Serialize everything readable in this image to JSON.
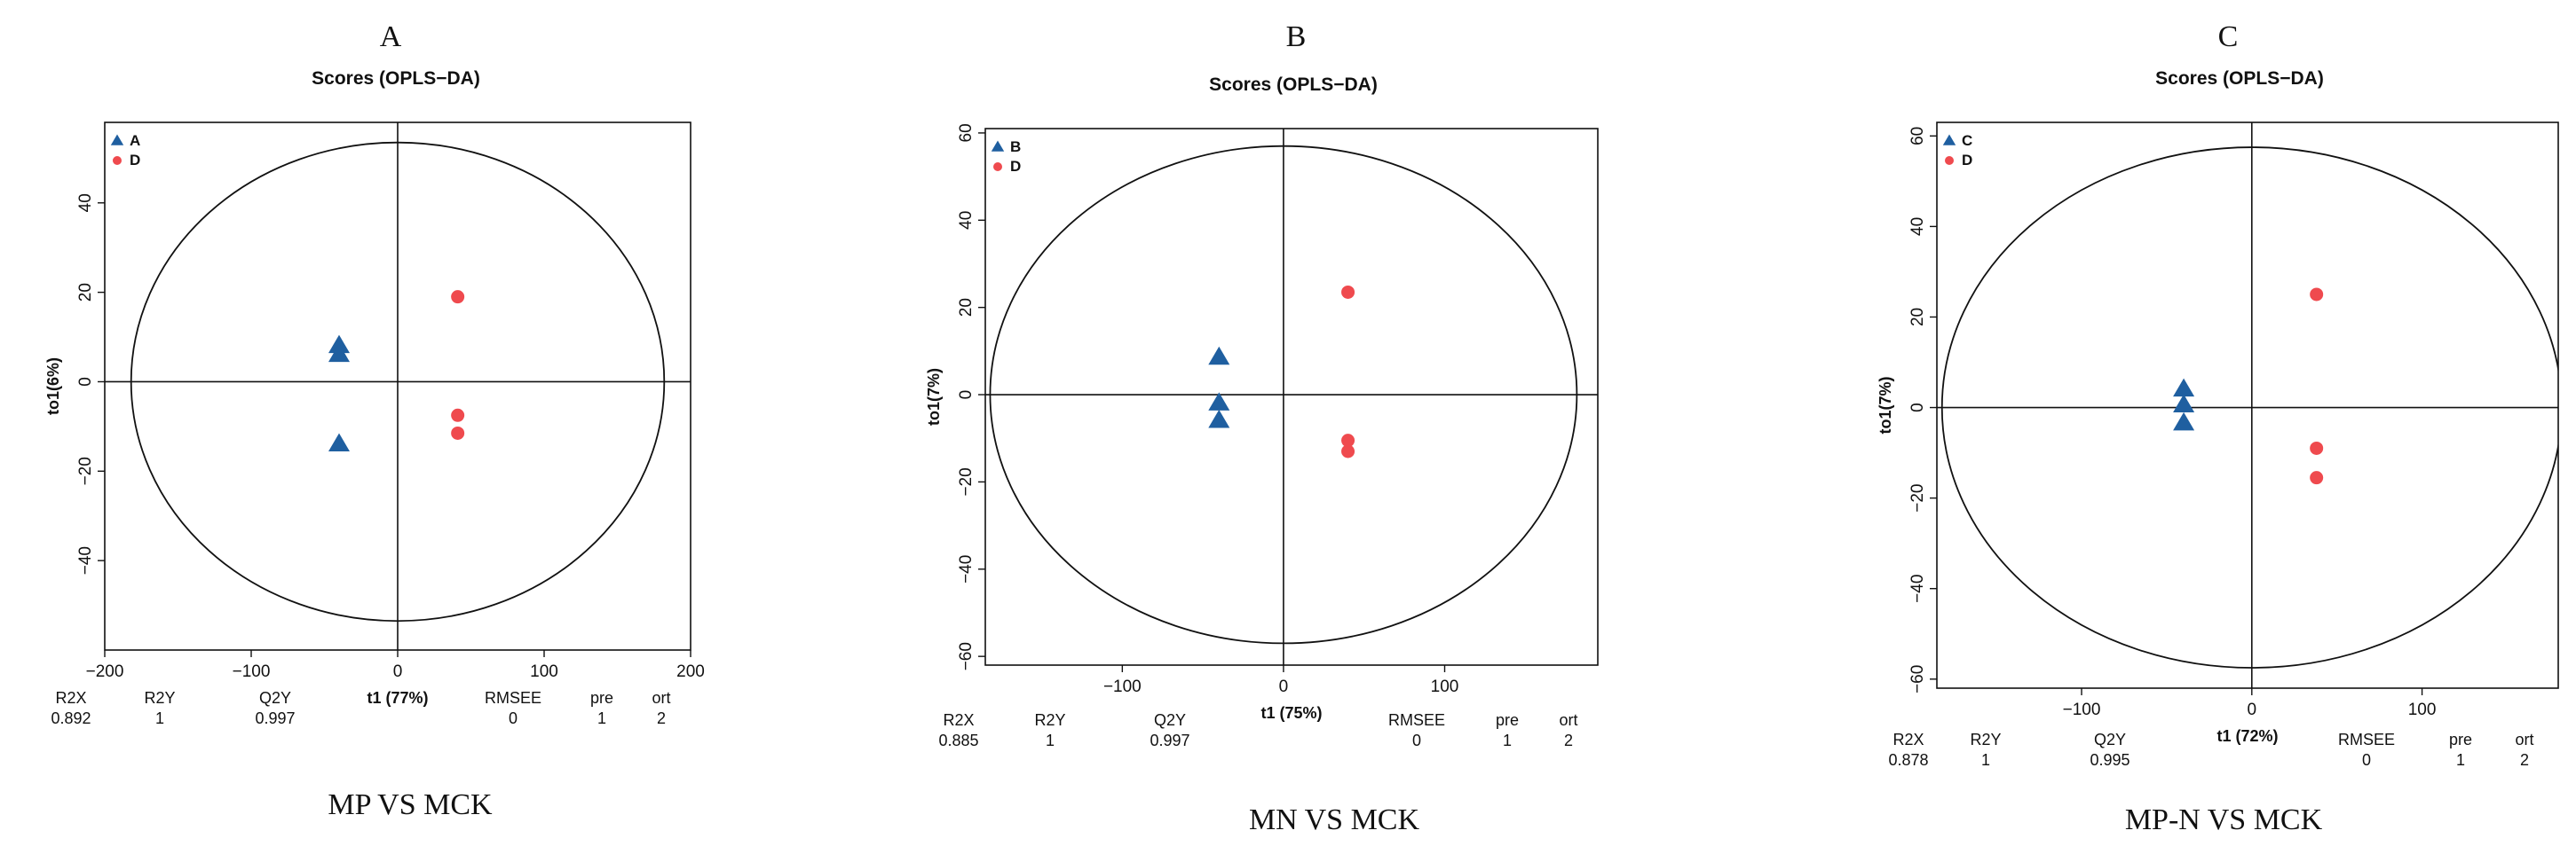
{
  "chart_data": [
    {
      "type": "scatter",
      "panel_letter": "A",
      "title": "Scores (OPLS−DA)",
      "xlabel": "t1 (77%)",
      "ylabel": "to1(6%)",
      "xlim": [
        -200,
        200
      ],
      "ylim": [
        -60,
        58
      ],
      "xticks": [
        -200,
        -100,
        0,
        100,
        200
      ],
      "xtick_labels": [
        "−200",
        "−100",
        "0",
        "100",
        "200"
      ],
      "yticks": [
        -40,
        -20,
        0,
        20,
        40
      ],
      "ytick_labels": [
        "−40",
        "−20",
        "0",
        "20",
        "40"
      ],
      "ellipse": {
        "rx": 182,
        "ry": 53.5
      },
      "series": [
        {
          "name": "A",
          "marker": "triangle",
          "color": "#1f5fa0",
          "points": [
            {
              "x": -40,
              "y": 8
            },
            {
              "x": -40,
              "y": 6
            },
            {
              "x": -40,
              "y": -14
            }
          ]
        },
        {
          "name": "D",
          "marker": "circle",
          "color": "#ef4a4e",
          "points": [
            {
              "x": 41,
              "y": 19
            },
            {
              "x": 41,
              "y": -7.5
            },
            {
              "x": 41,
              "y": -11.5
            }
          ]
        }
      ],
      "stats_headers": [
        "R2X",
        "R2Y",
        "Q2Y",
        "RMSEE",
        "pre",
        "ort"
      ],
      "stats_values": [
        "0.892",
        "1",
        "0.997",
        "0",
        "1",
        "2"
      ],
      "caption": "MP VS MCK"
    },
    {
      "type": "scatter",
      "panel_letter": "B",
      "title": "Scores (OPLS−DA)",
      "xlabel": "t1 (75%)",
      "ylabel": "to1(7%)",
      "xlim": [
        -185,
        195
      ],
      "ylim": [
        -62,
        61
      ],
      "xticks": [
        -100,
        0,
        100
      ],
      "xtick_labels": [
        "−100",
        "0",
        "100"
      ],
      "yticks": [
        -60,
        -40,
        -20,
        0,
        20,
        40,
        60
      ],
      "ytick_labels": [
        "−60",
        "−40",
        "−20",
        "0",
        "20",
        "40",
        "60"
      ],
      "ellipse": {
        "rx": 182,
        "ry": 57
      },
      "series": [
        {
          "name": "B",
          "marker": "triangle",
          "color": "#1f5fa0",
          "points": [
            {
              "x": -40,
              "y": 8.5
            },
            {
              "x": -40,
              "y": -2
            },
            {
              "x": -40,
              "y": -6
            }
          ]
        },
        {
          "name": "D",
          "marker": "circle",
          "color": "#ef4a4e",
          "points": [
            {
              "x": 40,
              "y": 23.5
            },
            {
              "x": 40,
              "y": -10.5
            },
            {
              "x": 40,
              "y": -13
            }
          ]
        }
      ],
      "stats_headers": [
        "R2X",
        "R2Y",
        "Q2Y",
        "RMSEE",
        "pre",
        "ort"
      ],
      "stats_values": [
        "0.885",
        "1",
        "0.997",
        "0",
        "1",
        "2"
      ],
      "caption": "MN VS MCK"
    },
    {
      "type": "scatter",
      "panel_letter": "C",
      "title": "Scores (OPLS−DA)",
      "xlabel": "t1 (72%)",
      "ylabel": "to1(7%)",
      "xlim": [
        -185,
        180
      ],
      "ylim": [
        -62,
        63
      ],
      "xticks": [
        -100,
        0,
        100
      ],
      "xtick_labels": [
        "−100",
        "0",
        "100"
      ],
      "yticks": [
        -60,
        -40,
        -20,
        0,
        20,
        40,
        60
      ],
      "ytick_labels": [
        "−60",
        "−40",
        "−20",
        "0",
        "20",
        "40",
        "60"
      ],
      "ellipse": {
        "rx": 182,
        "ry": 57.5
      },
      "series": [
        {
          "name": "C",
          "marker": "triangle",
          "color": "#1f5fa0",
          "points": [
            {
              "x": -40,
              "y": 4
            },
            {
              "x": -40,
              "y": 0.5
            },
            {
              "x": -40,
              "y": -3.5
            }
          ]
        },
        {
          "name": "D",
          "marker": "circle",
          "color": "#ef4a4e",
          "points": [
            {
              "x": 38,
              "y": 25
            },
            {
              "x": 38,
              "y": -9
            },
            {
              "x": 38,
              "y": -15.5
            }
          ]
        }
      ],
      "stats_headers": [
        "R2X",
        "R2Y",
        "Q2Y",
        "RMSEE",
        "pre",
        "ort"
      ],
      "stats_values": [
        "0.878",
        "1",
        "0.995",
        "0",
        "1",
        "2"
      ],
      "caption": "MP-N VS MCK"
    }
  ]
}
